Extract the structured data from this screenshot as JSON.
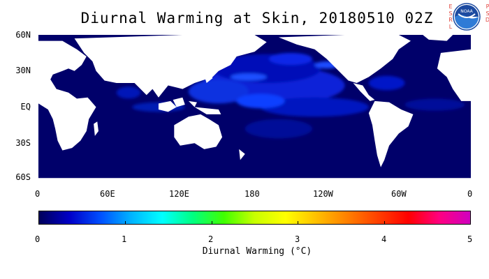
{
  "title": "Diurnal Warming at Skin, 20180510 02Z",
  "logo": {
    "left_letters": [
      "E",
      "S",
      "R",
      "L"
    ],
    "right_letters": [
      "P",
      "S",
      "D"
    ],
    "emblem": "noaa-logo",
    "emblem_text": "NOAA"
  },
  "map": {
    "projection": "equirectangular",
    "lon_range": [
      0,
      360
    ],
    "lat_range": [
      -60,
      60
    ],
    "y_labels": [
      "60N",
      "30N",
      "EQ",
      "30S",
      "60S"
    ],
    "x_labels": [
      "0",
      "60E",
      "120E",
      "180",
      "120W",
      "60W",
      "0"
    ],
    "land_color": "#ffffff",
    "background_ocean_color": "#00006a"
  },
  "colorbar": {
    "label": "Diurnal Warming (°C)",
    "ticks": [
      "0",
      "1",
      "2",
      "3",
      "4",
      "5"
    ],
    "range": [
      0,
      5
    ],
    "colors": [
      "#00005a",
      "#0000c8",
      "#0050ff",
      "#00b4ff",
      "#00ffff",
      "#00ff80",
      "#40ff00",
      "#c8ff00",
      "#ffff00",
      "#ffc000",
      "#ff8000",
      "#ff4000",
      "#ff0000",
      "#ff0080",
      "#d000c0"
    ]
  }
}
